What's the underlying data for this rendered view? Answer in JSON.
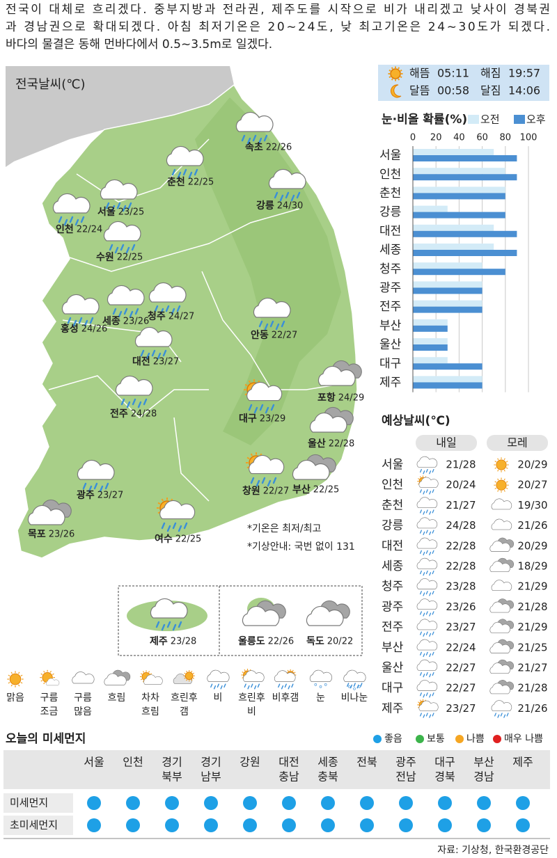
{
  "header": {
    "lines": [
      "전국이 대체로 흐리겠다. 중부지방과 전라권, 제주도를 시작으로 비가 내리겠고 낮사이 경북권",
      "과 경남권으로 확대되겠다. 아침 최저기온은 20~24도, 낮 최고기온은 24~30도가 되겠다.",
      "바다의 물결은 동해 먼바다에서 0.5~3.5m로 일겠다."
    ]
  },
  "map": {
    "title": "전국날씨(℃)",
    "cities": [
      {
        "name": "속초",
        "temps": "22/26"
      },
      {
        "name": "춘천",
        "temps": "22/25"
      },
      {
        "name": "강릉",
        "temps": "24/30"
      },
      {
        "name": "서울",
        "temps": "23/25"
      },
      {
        "name": "인천",
        "temps": "22/24"
      },
      {
        "name": "수원",
        "temps": "22/25"
      },
      {
        "name": "홍성",
        "temps": "24/26"
      },
      {
        "name": "세종",
        "temps": "23/26"
      },
      {
        "name": "청주",
        "temps": "24/27"
      },
      {
        "name": "안동",
        "temps": "22/27"
      },
      {
        "name": "대전",
        "temps": "23/27"
      },
      {
        "name": "전주",
        "temps": "24/28"
      },
      {
        "name": "대구",
        "temps": "23/29"
      },
      {
        "name": "포항",
        "temps": "24/29"
      },
      {
        "name": "울산",
        "temps": "22/28"
      },
      {
        "name": "창원",
        "temps": "22/27"
      },
      {
        "name": "부산",
        "temps": "22/25"
      },
      {
        "name": "광주",
        "temps": "23/27"
      },
      {
        "name": "목포",
        "temps": "23/26"
      },
      {
        "name": "여수",
        "temps": "22/25"
      }
    ],
    "notes": [
      "*기온은 최저/최고",
      "*기상안내: 국번 없이 131"
    ],
    "islands": [
      {
        "name": "제주",
        "temps": "23/28"
      },
      {
        "name": "울릉도",
        "temps": "22/26"
      },
      {
        "name": "독도",
        "temps": "20/22"
      }
    ]
  },
  "sun_moon": [
    {
      "label": "해뜸",
      "time": "05:11"
    },
    {
      "label": "해짐",
      "time": "19:57"
    },
    {
      "label": "달뜸",
      "time": "00:58"
    },
    {
      "label": "달짐",
      "time": "14:06"
    }
  ],
  "chart_data": {
    "type": "bar",
    "orientation": "horizontal",
    "title": "눈·비올 확률(%)",
    "categories": [
      "서울",
      "인천",
      "춘천",
      "강릉",
      "대전",
      "세종",
      "청주",
      "광주",
      "전주",
      "부산",
      "울산",
      "대구",
      "제주"
    ],
    "series": [
      {
        "name": "오전",
        "color": "#d3ebf7",
        "values": [
          70,
          80,
          80,
          30,
          70,
          70,
          60,
          60,
          60,
          30,
          30,
          30,
          60
        ]
      },
      {
        "name": "오후",
        "color": "#4b8fd2",
        "values": [
          90,
          90,
          80,
          80,
          90,
          90,
          80,
          60,
          60,
          30,
          30,
          60,
          60
        ]
      }
    ],
    "xlim": [
      0,
      100
    ],
    "xticks": [
      0,
      20,
      40,
      60,
      80,
      100
    ],
    "grid": true
  },
  "forecast": {
    "title": "예상날씨(℃)",
    "days": [
      "내일",
      "모레"
    ],
    "rows": [
      {
        "city": "서울",
        "temps": [
          "21/28",
          "20/29"
        ]
      },
      {
        "city": "인천",
        "temps": [
          "20/24",
          "20/27"
        ]
      },
      {
        "city": "춘천",
        "temps": [
          "21/27",
          "19/30"
        ]
      },
      {
        "city": "강릉",
        "temps": [
          "24/28",
          "21/26"
        ]
      },
      {
        "city": "대전",
        "temps": [
          "22/28",
          "20/29"
        ]
      },
      {
        "city": "세종",
        "temps": [
          "22/28",
          "18/29"
        ]
      },
      {
        "city": "청주",
        "temps": [
          "23/28",
          "21/29"
        ]
      },
      {
        "city": "광주",
        "temps": [
          "23/26",
          "21/28"
        ]
      },
      {
        "city": "전주",
        "temps": [
          "23/27",
          "21/29"
        ]
      },
      {
        "city": "부산",
        "temps": [
          "22/24",
          "21/25"
        ]
      },
      {
        "city": "울산",
        "temps": [
          "22/27",
          "21/27"
        ]
      },
      {
        "city": "대구",
        "temps": [
          "22/27",
          "21/28"
        ]
      },
      {
        "city": "제주",
        "temps": [
          "23/27",
          "21/26"
        ]
      }
    ]
  },
  "icon_legend": [
    [
      "맑음"
    ],
    [
      "구름",
      "조금"
    ],
    [
      "구름",
      "많음"
    ],
    [
      "흐림"
    ],
    [
      "차차",
      "흐림"
    ],
    [
      "흐린후",
      "갬"
    ],
    [
      "비"
    ],
    [
      "흐린후",
      "비"
    ],
    [
      "비후갬"
    ],
    [
      "눈"
    ],
    [
      "비나눈"
    ]
  ],
  "dust": {
    "title": "오늘의 미세먼지",
    "legend": [
      {
        "label": "좋음",
        "color": "#1ea0e6"
      },
      {
        "label": "보통",
        "color": "#3cb44b"
      },
      {
        "label": "나쁨",
        "color": "#f5a623"
      },
      {
        "label": "매우 나쁨",
        "color": "#e02020"
      }
    ],
    "regions": [
      [
        "서울"
      ],
      [
        "인천"
      ],
      [
        "경기",
        "북부"
      ],
      [
        "경기",
        "남부"
      ],
      [
        "강원"
      ],
      [
        "대전",
        "충남"
      ],
      [
        "세종",
        "충북"
      ],
      [
        "전북"
      ],
      [
        "광주",
        "전남"
      ],
      [
        "대구",
        "경북"
      ],
      [
        "부산",
        "경남"
      ],
      [
        "제주"
      ]
    ],
    "rows": [
      {
        "name": "미세먼지",
        "levels": [
          "좋음",
          "좋음",
          "좋음",
          "좋음",
          "좋음",
          "좋음",
          "좋음",
          "좋음",
          "좋음",
          "좋음",
          "좋음",
          "좋음"
        ]
      },
      {
        "name": "초미세먼지",
        "levels": [
          "좋음",
          "좋음",
          "좋음",
          "좋음",
          "좋음",
          "좋음",
          "좋음",
          "좋음",
          "좋음",
          "좋음",
          "좋음",
          "좋음"
        ]
      }
    ]
  },
  "source": "자료: 기상청, 한국환경공단"
}
